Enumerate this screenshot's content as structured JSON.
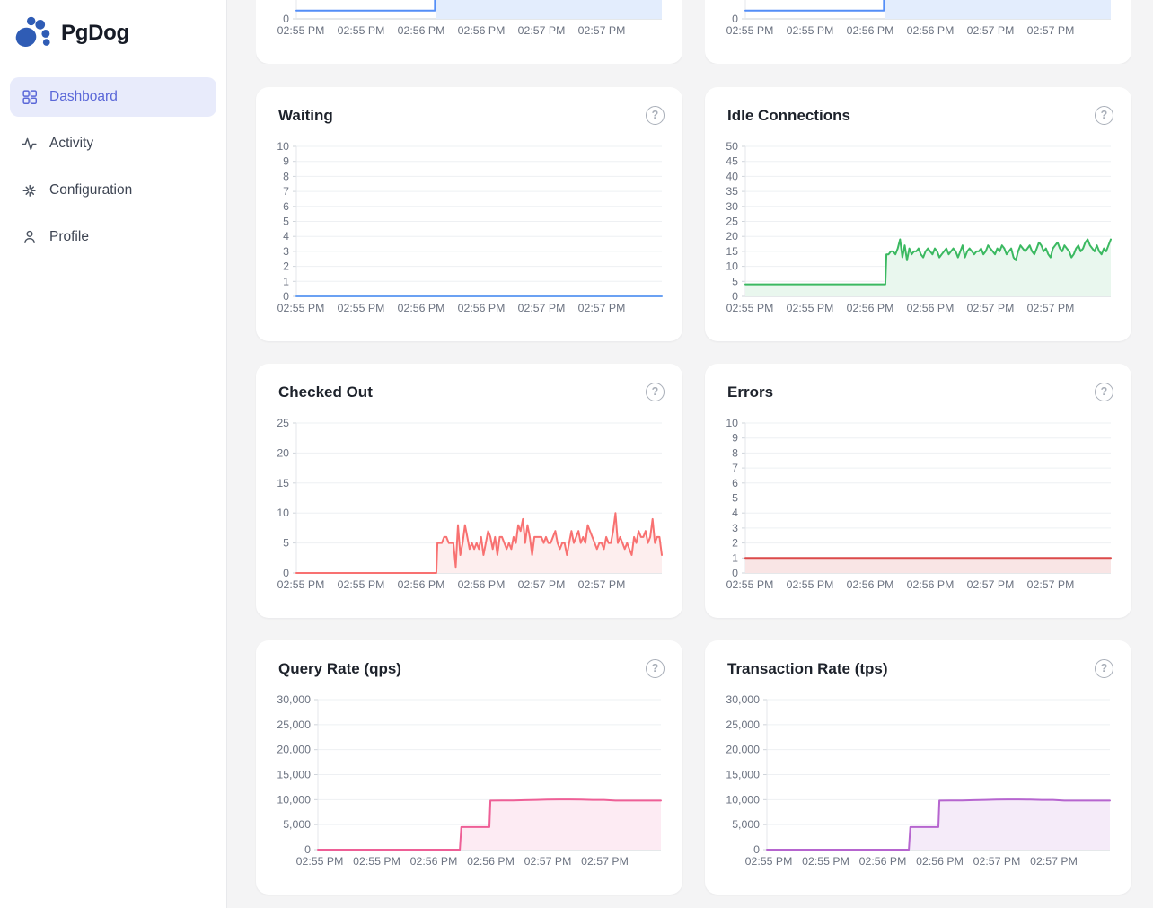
{
  "app": {
    "name": "PgDog"
  },
  "sidebar": {
    "items": [
      {
        "label": "Dashboard",
        "icon": "dashboard-grid-icon",
        "active": true
      },
      {
        "label": "Activity",
        "icon": "activity-pulse-icon",
        "active": false
      },
      {
        "label": "Configuration",
        "icon": "configuration-spark-icon",
        "active": false
      },
      {
        "label": "Profile",
        "icon": "profile-person-icon",
        "active": false
      }
    ]
  },
  "help_label": "?",
  "time_ticks": [
    "02:55 PM",
    "02:55 PM",
    "02:56 PM",
    "02:56 PM",
    "02:57 PM",
    "02:57 PM"
  ],
  "chart_data": [
    {
      "id": "top-left",
      "title": "",
      "type": "line",
      "cropped": true,
      "axis": "narrow",
      "ylim": [
        0,
        10
      ],
      "yticks": [
        "0"
      ],
      "color": "#548ef7",
      "fill": "#e3edfd",
      "fill_from": 0.382,
      "segments": [
        {
          "x0": 0,
          "x1": 0.379,
          "v": [
            0.55,
            0.55
          ]
        },
        {
          "x0": 0.382,
          "x1": 1,
          "v": [
            30,
            30
          ]
        }
      ]
    },
    {
      "id": "top-right",
      "title": "",
      "type": "line",
      "cropped": true,
      "axis": "narrow",
      "ylim": [
        0,
        10
      ],
      "yticks": [
        "0"
      ],
      "color": "#548ef7",
      "fill": "#e3edfd",
      "fill_from": 0.382,
      "segments": [
        {
          "x0": 0,
          "x1": 0.379,
          "v": [
            0.55,
            0.55
          ]
        },
        {
          "x0": 0.382,
          "x1": 1,
          "v": [
            30,
            30
          ]
        }
      ]
    },
    {
      "id": "waiting",
      "title": "Waiting",
      "type": "line",
      "cropped": false,
      "axis": "narrow",
      "ylim": [
        0,
        10
      ],
      "yticks": [
        "10",
        "9",
        "8",
        "7",
        "6",
        "5",
        "4",
        "3",
        "2",
        "1",
        "0"
      ],
      "color": "#6ba1f3",
      "fill": "#e3edfd",
      "fill_from": 0,
      "segments": [
        {
          "x0": 0,
          "x1": 1,
          "v": [
            0,
            0
          ]
        }
      ]
    },
    {
      "id": "idle-connections",
      "title": "Idle Connections",
      "type": "line",
      "cropped": false,
      "axis": "narrow",
      "ylim": [
        0,
        50
      ],
      "yticks": [
        "50",
        "45",
        "40",
        "35",
        "30",
        "25",
        "20",
        "15",
        "10",
        "5",
        "0"
      ],
      "color": "#3bb961",
      "fill": "#e9f7ee",
      "fill_from": 0,
      "segments": [
        {
          "x0": 0,
          "x1": 0.383,
          "v": [
            4,
            4
          ]
        },
        {
          "x0": 0.386,
          "x1": 0.392,
          "v": [
            14,
            14
          ]
        },
        {
          "x0": 0.398,
          "x1": 1,
          "v": [
            15,
            15,
            14,
            16,
            19,
            13,
            17,
            12,
            16,
            14,
            15,
            15,
            16,
            14,
            13,
            15,
            16,
            15,
            14,
            16,
            15,
            13,
            14,
            15,
            16,
            14,
            15,
            16,
            15,
            13,
            15,
            17,
            13,
            15,
            16,
            15,
            14,
            15,
            15,
            16,
            14,
            15,
            17,
            16,
            15,
            14,
            16,
            15,
            17,
            16,
            14,
            15,
            16,
            13,
            12,
            15,
            17,
            16,
            15,
            16,
            17,
            15,
            14,
            16,
            18,
            17,
            15,
            16,
            14,
            13,
            16,
            17,
            18,
            16,
            15,
            17,
            16,
            15,
            13,
            14,
            16,
            17,
            15,
            16,
            18,
            19,
            17,
            16,
            15,
            17,
            15,
            14,
            16,
            15,
            17,
            19
          ]
        }
      ]
    },
    {
      "id": "checked-out",
      "title": "Checked Out",
      "type": "line",
      "cropped": false,
      "axis": "narrow",
      "ylim": [
        0,
        25
      ],
      "yticks": [
        "25",
        "20",
        "15",
        "10",
        "5",
        "0"
      ],
      "color": "#f87171",
      "fill": "#fdeeee",
      "fill_from": 0,
      "segments": [
        {
          "x0": 0,
          "x1": 0.383,
          "v": [
            0,
            0
          ]
        },
        {
          "x0": 0.386,
          "x1": 0.392,
          "v": [
            5,
            5
          ]
        },
        {
          "x0": 0.398,
          "x1": 1,
          "v": [
            5,
            6,
            6,
            5,
            5,
            5,
            1,
            8,
            3,
            5,
            8,
            6,
            4,
            5,
            4,
            5,
            4,
            6,
            3,
            5,
            7,
            6,
            4,
            6,
            3,
            6,
            6,
            5,
            4,
            5,
            4,
            6,
            5,
            8,
            7,
            9,
            5,
            8,
            6,
            3,
            6,
            6,
            6,
            6,
            5,
            6,
            5,
            5,
            6,
            7,
            5,
            4,
            5,
            5,
            3,
            5,
            7,
            5,
            6,
            7,
            5,
            6,
            5,
            8,
            7,
            6,
            5,
            4,
            5,
            5,
            4,
            6,
            5,
            5,
            7,
            10,
            5,
            6,
            5,
            4,
            5,
            4,
            3,
            6,
            5,
            7,
            6,
            6,
            7,
            5,
            6,
            9,
            5,
            6,
            6,
            3
          ]
        }
      ]
    },
    {
      "id": "errors",
      "title": "Errors",
      "type": "line",
      "cropped": false,
      "axis": "narrow",
      "ylim": [
        0,
        10
      ],
      "yticks": [
        "10",
        "9",
        "8",
        "7",
        "6",
        "5",
        "4",
        "3",
        "2",
        "1",
        "0"
      ],
      "color": "#dc4a4a",
      "fill": "#f9e5e5",
      "fill_from": 0,
      "segments": [
        {
          "x0": 0,
          "x1": 1,
          "v": [
            1,
            1
          ]
        }
      ]
    },
    {
      "id": "query-rate",
      "title": "Query Rate (qps)",
      "type": "line",
      "cropped": false,
      "axis": "wide",
      "ylim": [
        0,
        30000
      ],
      "yticks": [
        "30,000",
        "25,000",
        "20,000",
        "15,000",
        "10,000",
        "5,000",
        "0"
      ],
      "color": "#ee5f96",
      "fill": "#fdebf3",
      "fill_from": 0,
      "segments": [
        {
          "x0": 0,
          "x1": 0.414,
          "v": [
            0,
            0
          ]
        },
        {
          "x0": 0.418,
          "x1": 0.5,
          "v": [
            4500,
            4500
          ]
        },
        {
          "x0": 0.503,
          "x1": 1,
          "v": [
            9800,
            9850,
            9850,
            9900,
            9950,
            10000,
            10050,
            10050,
            10000,
            9950,
            9950,
            9800,
            9800,
            9800,
            9800,
            9800
          ]
        }
      ]
    },
    {
      "id": "transaction-rate",
      "title": "Transaction Rate (tps)",
      "type": "line",
      "cropped": false,
      "axis": "wide",
      "ylim": [
        0,
        30000
      ],
      "yticks": [
        "30,000",
        "25,000",
        "20,000",
        "15,000",
        "10,000",
        "5,000",
        "0"
      ],
      "color": "#b665cf",
      "fill": "#f5ebf9",
      "fill_from": 0,
      "segments": [
        {
          "x0": 0,
          "x1": 0.414,
          "v": [
            0,
            0
          ]
        },
        {
          "x0": 0.418,
          "x1": 0.5,
          "v": [
            4500,
            4500
          ]
        },
        {
          "x0": 0.503,
          "x1": 1,
          "v": [
            9800,
            9850,
            9850,
            9900,
            9950,
            10000,
            10050,
            10050,
            10000,
            9950,
            9950,
            9800,
            9800,
            9800,
            9800,
            9800
          ]
        }
      ]
    }
  ]
}
